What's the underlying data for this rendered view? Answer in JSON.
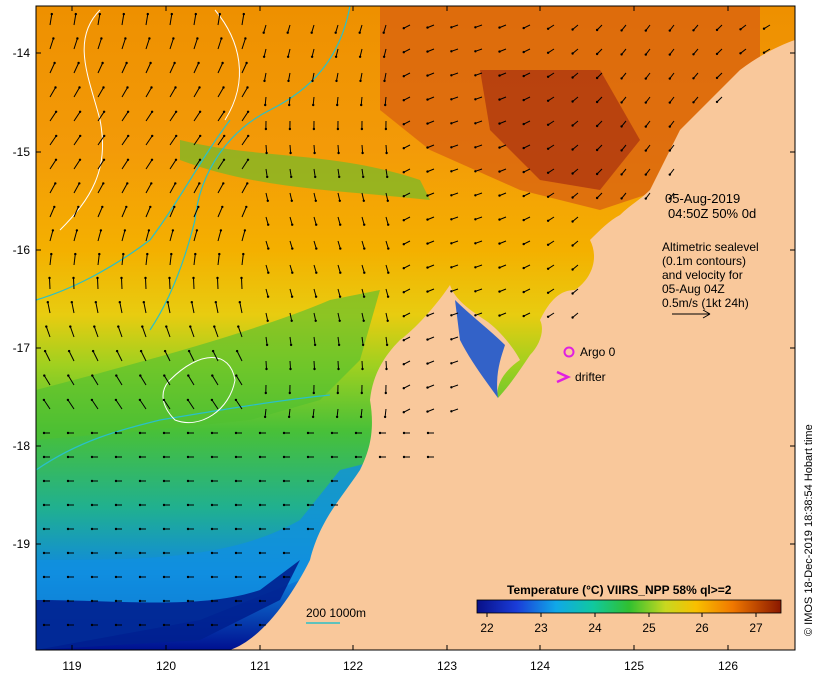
{
  "date_line": "05-Aug-2019",
  "time_line": "04:50Z  50% 0d",
  "altimetry": [
    "Altimetric sealevel",
    "(0.1m contours)",
    "and velocity for",
    "05-Aug 04Z",
    "0.5m/s (1kt 24h)"
  ],
  "legend": {
    "argo": "Argo 0",
    "drifter": "drifter",
    "argo_color": "#e020e0"
  },
  "isobath_label": "200  1000m",
  "isobath_color": "#2ac0c8",
  "colorbar": {
    "title": "Temperature (°C) VIIRS_NPP 58% ql>=2",
    "ticks": [
      "22",
      "23",
      "24",
      "25",
      "26",
      "27"
    ]
  },
  "credit": "© IMOS 18-Dec-2019 18:38:54 Hobart time",
  "axes": {
    "lon_ticks": [
      "119",
      "120",
      "121",
      "122",
      "123",
      "124",
      "125",
      "126"
    ],
    "lat_ticks": [
      "-14",
      "-15",
      "-16",
      "-17",
      "-18",
      "-19"
    ]
  },
  "colors": {
    "land": "#f9c89b",
    "ocean_warm": "#f08c00",
    "ocean_cold": "#0010a0"
  }
}
